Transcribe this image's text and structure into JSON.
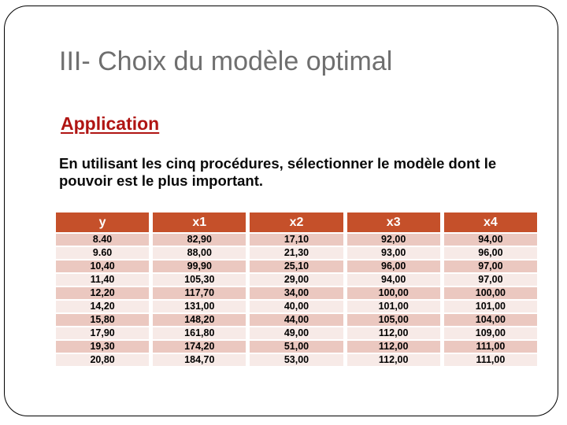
{
  "slide": {
    "title": "III- Choix du modèle optimal",
    "subtitle": "Application",
    "instruction_line1": "En utilisant les cinq procédures, sélectionner le modèle dont le",
    "instruction_line2": "pouvoir est le plus important."
  },
  "colors": {
    "title_gray": "#6f6f6f",
    "subtitle_red": "#b01513",
    "header_orange": "#c5502a",
    "row_dark": "#ebc8c0",
    "row_light": "#f7eae7"
  },
  "table": {
    "headers": [
      "y",
      "x1",
      "x2",
      "x3",
      "x4"
    ],
    "rows": [
      [
        "8.40",
        "82,90",
        "17,10",
        "92,00",
        "94,00"
      ],
      [
        "9.60",
        "88,00",
        "21,30",
        "93,00",
        "96,00"
      ],
      [
        "10,40",
        "99,90",
        "25,10",
        "96,00",
        "97,00"
      ],
      [
        "11,40",
        "105,30",
        "29,00",
        "94,00",
        "97,00"
      ],
      [
        "12,20",
        "117,70",
        "34,00",
        "100,00",
        "100,00"
      ],
      [
        "14,20",
        "131,00",
        "40,00",
        "101,00",
        "101,00"
      ],
      [
        "15,80",
        "148,20",
        "44,00",
        "105,00",
        "104,00"
      ],
      [
        "17,90",
        "161,80",
        "49,00",
        "112,00",
        "109,00"
      ],
      [
        "19,30",
        "174,20",
        "51,00",
        "112,00",
        "111,00"
      ],
      [
        "20,80",
        "184,70",
        "53,00",
        "112,00",
        "111,00"
      ]
    ]
  }
}
